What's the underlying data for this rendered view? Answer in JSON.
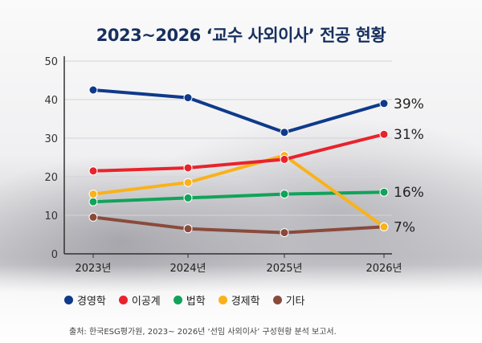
{
  "title": "2023~2026 ‘교수 사외이사’ 전공 현황",
  "source": "출처: 한국ESG평가원, 2023~ 2026년 ‘선임 사외이사’ 구성현황 분석 보고서.",
  "chart_data": {
    "type": "line",
    "title": "2023~2026 ‘교수 사외이사’ 전공 현황",
    "categories": [
      "2023년",
      "2024년",
      "2025년",
      "2026년"
    ],
    "ylim": [
      0,
      50
    ],
    "yticks": [
      0,
      10,
      20,
      30,
      40,
      50
    ],
    "grid": true,
    "legend_position": "bottom",
    "series": [
      {
        "name": "경영학",
        "color": "#0f3a8a",
        "values": [
          42.5,
          40.5,
          31.5,
          39
        ],
        "end_label": "39%"
      },
      {
        "name": "이공계",
        "color": "#e8232b",
        "values": [
          21.5,
          22.3,
          24.5,
          31
        ],
        "end_label": "31%"
      },
      {
        "name": "법학",
        "color": "#11a35a",
        "values": [
          13.5,
          14.5,
          15.5,
          16
        ],
        "end_label": "16%"
      },
      {
        "name": "경제학",
        "color": "#f9b21b",
        "values": [
          15.5,
          18.5,
          25.5,
          7
        ],
        "end_label": ""
      },
      {
        "name": "기타",
        "color": "#8a4a3b",
        "values": [
          9.5,
          6.5,
          5.5,
          7
        ],
        "end_label": "7%"
      }
    ]
  }
}
